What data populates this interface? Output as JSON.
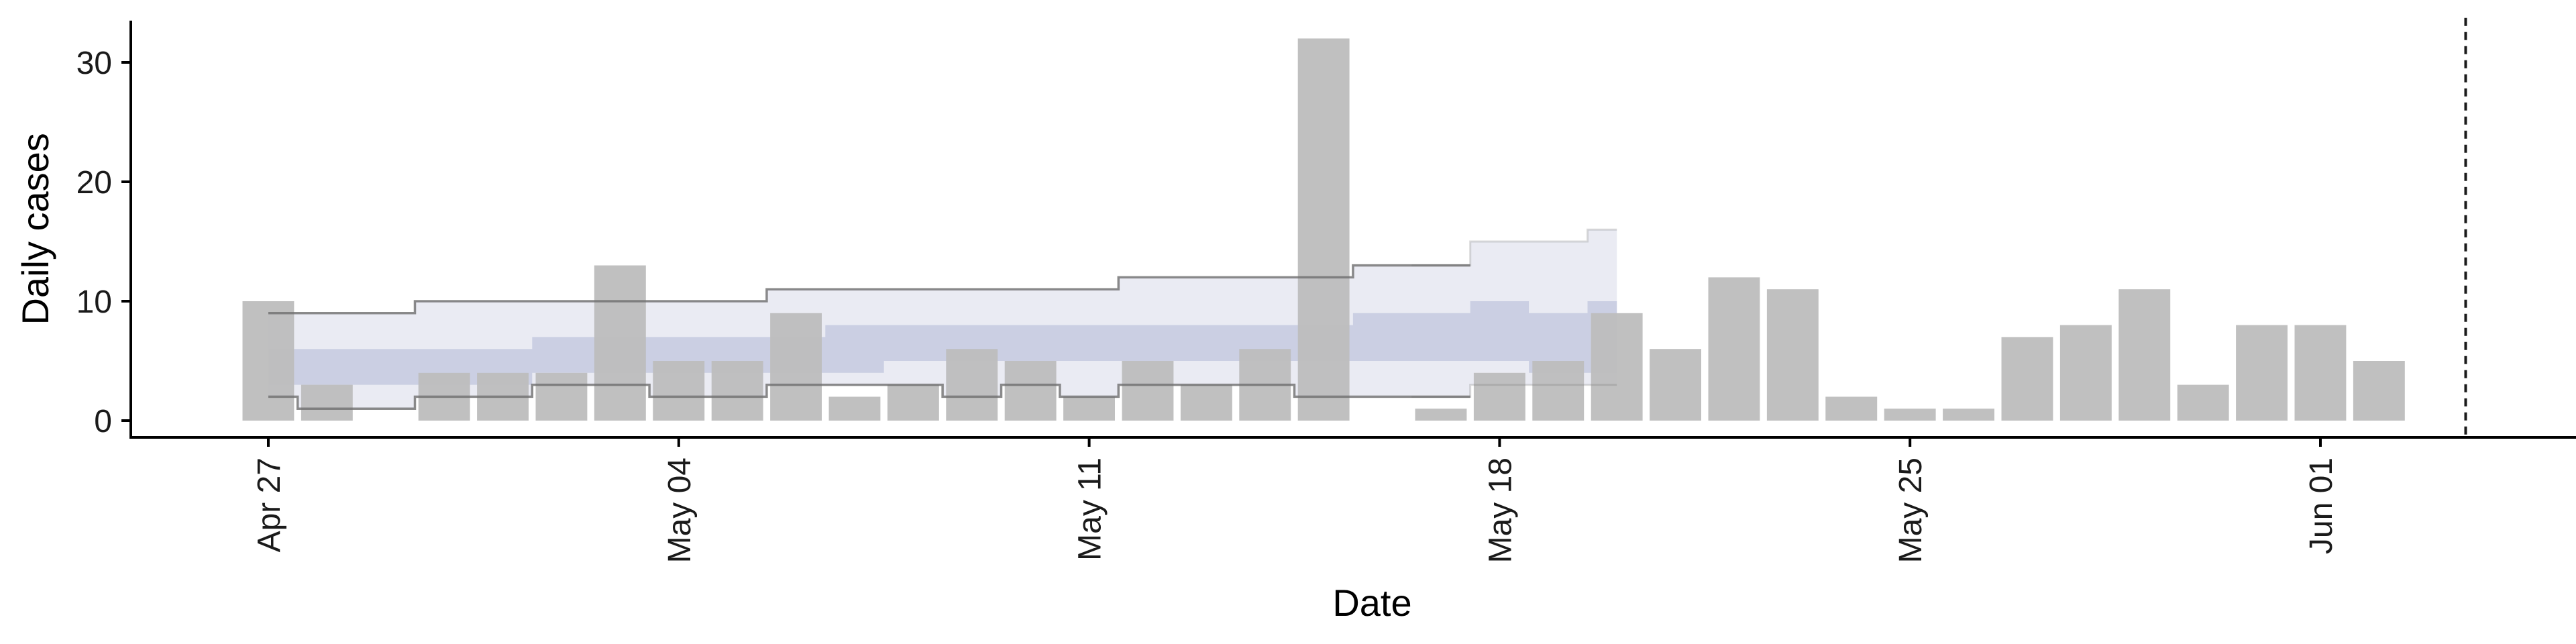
{
  "chart_data": {
    "type": "bar",
    "xlabel": "Date",
    "ylabel": "Daily cases",
    "x_tick_labels": [
      "Apr 27",
      "May 04",
      "May 11",
      "May 18",
      "May 25",
      "Jun 01"
    ],
    "x_tick_dates": [
      "2020-04-27",
      "2020-05-04",
      "2020-05-11",
      "2020-05-18",
      "2020-05-25",
      "2020-06-01"
    ],
    "y_tick_labels": [
      "0",
      "10",
      "20",
      "30"
    ],
    "y_ticks": [
      0,
      10,
      20,
      30
    ],
    "xlim": [
      "2020-04-24",
      "2020-06-06"
    ],
    "ylim": [
      -1.5,
      33.5
    ],
    "grid": false,
    "legend": "none",
    "bars": {
      "name": "",
      "color": "#bdbdbd",
      "dates": [
        "2020-04-27",
        "2020-04-28",
        "2020-04-29",
        "2020-04-30",
        "2020-05-01",
        "2020-05-02",
        "2020-05-03",
        "2020-05-04",
        "2020-05-05",
        "2020-05-06",
        "2020-05-07",
        "2020-05-08",
        "2020-05-09",
        "2020-05-10",
        "2020-05-11",
        "2020-05-12",
        "2020-05-13",
        "2020-05-14",
        "2020-05-15",
        "2020-05-16",
        "2020-05-17",
        "2020-05-18",
        "2020-05-19",
        "2020-05-20",
        "2020-05-21",
        "2020-05-22",
        "2020-05-23",
        "2020-05-24",
        "2020-05-25",
        "2020-05-26",
        "2020-05-27",
        "2020-05-28",
        "2020-05-29",
        "2020-05-30",
        "2020-05-31",
        "2020-06-01",
        "2020-06-02",
        "2020-06-03"
      ],
      "values": [
        10,
        3,
        0,
        4,
        4,
        4,
        13,
        5,
        5,
        9,
        2,
        3,
        6,
        5,
        2,
        5,
        3,
        6,
        32,
        0,
        1,
        4,
        5,
        9,
        6,
        12,
        11,
        2,
        1,
        1,
        7,
        8,
        11,
        3,
        8,
        8,
        5,
        0
      ]
    },
    "estimate": {
      "dates": [
        "2020-04-27",
        "2020-04-28",
        "2020-04-29",
        "2020-04-30",
        "2020-05-01",
        "2020-05-02",
        "2020-05-03",
        "2020-05-04",
        "2020-05-05",
        "2020-05-06",
        "2020-05-07",
        "2020-05-08",
        "2020-05-09",
        "2020-05-10",
        "2020-05-11",
        "2020-05-12",
        "2020-05-13",
        "2020-05-14",
        "2020-05-15",
        "2020-05-16",
        "2020-05-17",
        "2020-05-18",
        "2020-05-19",
        "2020-05-20"
      ],
      "inner_lower": [
        3,
        3,
        3,
        3,
        3,
        4,
        4,
        4,
        4,
        4,
        4,
        5,
        5,
        5,
        5,
        5,
        5,
        5,
        5,
        5,
        5,
        5,
        4,
        4
      ],
      "inner_upper": [
        6,
        6,
        6,
        6,
        6,
        7,
        7,
        7,
        7,
        7,
        8,
        8,
        8,
        8,
        8,
        8,
        8,
        8,
        8,
        9,
        9,
        10,
        9,
        10
      ],
      "outer_lower": [
        2,
        1,
        1,
        2,
        2,
        3,
        3,
        2,
        2,
        3,
        3,
        3,
        2,
        3,
        2,
        3,
        3,
        3,
        2,
        2,
        2,
        3,
        3,
        3
      ],
      "outer_upper": [
        9,
        9,
        9,
        10,
        10,
        10,
        10,
        10,
        10,
        11,
        11,
        11,
        11,
        11,
        11,
        12,
        12,
        12,
        12,
        13,
        13,
        15,
        15,
        16
      ],
      "band_inner_color": "#c5cadf",
      "band_outer_color": "#e6e8f1",
      "line_color": "#6e6e6e"
    },
    "reference_line": {
      "date": "2020-06-03",
      "style": "dashed",
      "color": "#1a1a1a"
    }
  }
}
